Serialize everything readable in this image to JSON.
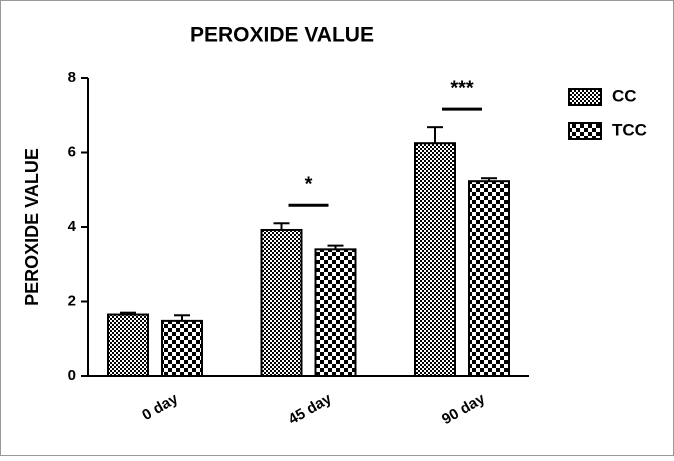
{
  "chart_data": {
    "type": "bar",
    "title": "PEROXIDE VALUE",
    "y_label": "PEROXIDE VALUE",
    "categories": [
      "0 day",
      "45 day",
      "90 day"
    ],
    "series": [
      {
        "name": "CC",
        "color": "#000000",
        "values": [
          1.65,
          3.92,
          6.25
        ],
        "errors": [
          0.05,
          0.18,
          0.43
        ]
      },
      {
        "name": "TCC",
        "color": "#000000",
        "values": [
          1.48,
          3.4,
          5.23
        ],
        "errors": [
          0.15,
          0.1,
          0.08
        ]
      }
    ],
    "annotations": [
      {
        "text": "*",
        "category": "45 day"
      },
      {
        "text": "***",
        "category": "90 day"
      }
    ],
    "ylim": [
      0,
      8
    ],
    "yticks": [
      0,
      2,
      4,
      6,
      8
    ],
    "legend": "upper right"
  }
}
